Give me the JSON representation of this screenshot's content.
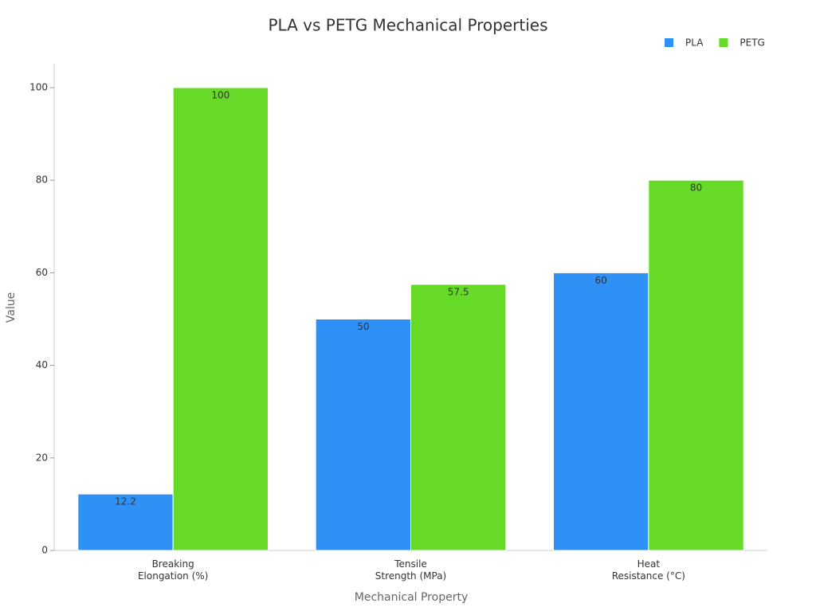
{
  "chart_data": {
    "type": "bar",
    "title": "PLA vs PETG Mechanical Properties",
    "x_label": "Mechanical Property",
    "y_label": "Value",
    "categories": [
      "Breaking\nElongation (%)",
      "Tensile\nStrength (MPa)",
      "Heat\nResistance (°C)"
    ],
    "series": [
      {
        "name": "PLA",
        "color": "#2f91f6",
        "values": [
          12.2,
          50,
          60
        ]
      },
      {
        "name": "PETG",
        "color": "#66da26",
        "values": [
          100,
          57.5,
          80
        ]
      }
    ],
    "ylim": [
      0,
      100
    ],
    "yticks": [
      0,
      20,
      40,
      60,
      80,
      100
    ],
    "grid": false,
    "legend": "top-right"
  }
}
